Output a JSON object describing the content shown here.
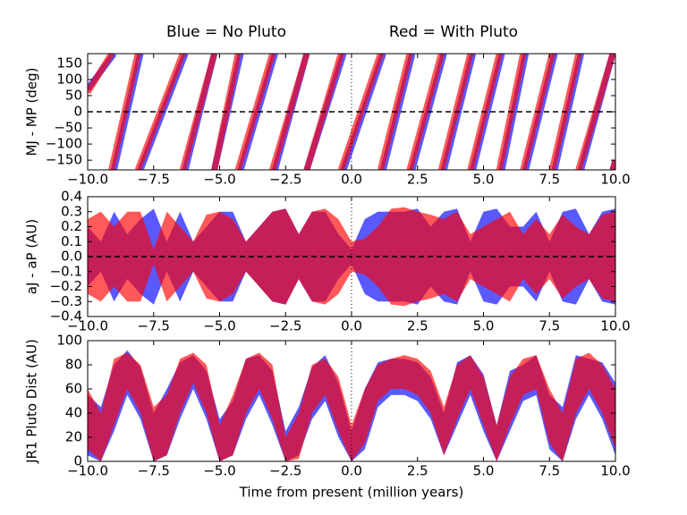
{
  "chart_data": [
    {
      "type": "line",
      "ylabel": "MJ - MP (deg)",
      "xlim": [
        -10,
        10
      ],
      "ylim": [
        -180,
        180
      ],
      "xticks": [
        {
          "value": -10,
          "label": "−10.0"
        },
        {
          "value": -7.5,
          "label": "−7.5"
        },
        {
          "value": -5,
          "label": "−5.0"
        },
        {
          "value": -2.5,
          "label": "−2.5"
        },
        {
          "value": 0,
          "label": "0.0"
        },
        2.5,
        {
          "value": 5,
          "label": "5.0"
        },
        7.5,
        {
          "value": 10,
          "label": "10.0"
        }
      ],
      "yticks": [
        {
          "value": -150,
          "label": "−150"
        },
        {
          "value": -100,
          "label": "−100"
        },
        {
          "value": -50,
          "label": "−50"
        },
        0,
        50,
        100,
        150
      ],
      "hline": 0,
      "vline": 0,
      "series": [
        {
          "name": "Blue = No Pluto",
          "color": "#0000ff",
          "alpha": 0.65,
          "x": [
            -10,
            -9,
            -9,
            -9,
            -8,
            -8,
            -8,
            -6.3,
            -6.3,
            -6.3,
            -5.2,
            -5.2,
            -5.2,
            -4.2,
            -4.2,
            -4.2,
            -2.9,
            -2.9,
            -2.9,
            -1.7,
            -1.7,
            -1.7,
            -0.3,
            -0.3,
            -0.3,
            1.2,
            1.2,
            1.2,
            2.3,
            2.3,
            2.3,
            3.5,
            3.5,
            3.5,
            4.6,
            4.6,
            4.6,
            5.7,
            5.7,
            5.7,
            6.6,
            6.6,
            6.6,
            7.7,
            7.7,
            7.7,
            8.7,
            8.7,
            8.7,
            9.9,
            9.9,
            9.9,
            10
          ],
          "values": [
            70,
            180,
            null,
            -180,
            180,
            null,
            -180,
            180,
            null,
            -180,
            180,
            null,
            -180,
            180,
            null,
            -180,
            180,
            null,
            -180,
            180,
            null,
            -180,
            180,
            null,
            -180,
            180,
            null,
            -180,
            180,
            null,
            -180,
            180,
            null,
            -180,
            180,
            null,
            -180,
            180,
            null,
            -180,
            180,
            null,
            -180,
            180,
            null,
            -180,
            180,
            null,
            -180,
            180,
            null,
            -180,
            -150
          ]
        },
        {
          "name": "Red = With Pluto",
          "color": "#ff0000",
          "alpha": 0.65,
          "x": [
            -10,
            -9.1,
            -9.1,
            -9.1,
            -8.1,
            -8.1,
            -8.1,
            -6.4,
            -6.4,
            -6.4,
            -5.2,
            -5.2,
            -5.2,
            -4.3,
            -4.3,
            -4.3,
            -3,
            -3,
            -3,
            -1.7,
            -1.7,
            -1.7,
            -0.4,
            -0.4,
            -0.4,
            1.1,
            1.1,
            1.1,
            2.2,
            2.2,
            2.2,
            3.4,
            3.4,
            3.4,
            4.5,
            4.5,
            4.5,
            5.6,
            5.6,
            5.6,
            6.5,
            6.5,
            6.5,
            7.6,
            7.6,
            7.6,
            8.6,
            8.6,
            8.6,
            9.9,
            9.9,
            9.9,
            10
          ],
          "values": [
            60,
            180,
            null,
            -180,
            180,
            null,
            -180,
            180,
            null,
            -180,
            180,
            null,
            -180,
            180,
            null,
            -180,
            180,
            null,
            -180,
            180,
            null,
            -180,
            180,
            null,
            -180,
            180,
            null,
            -180,
            180,
            null,
            -180,
            180,
            null,
            -180,
            180,
            null,
            -180,
            180,
            null,
            -180,
            180,
            null,
            -180,
            180,
            null,
            -180,
            180,
            null,
            -180,
            180,
            null,
            -180,
            -150
          ]
        }
      ]
    },
    {
      "type": "band",
      "ylabel": "aJ - aP (AU)",
      "xlim": [
        -10,
        10
      ],
      "ylim": [
        -0.4,
        0.4
      ],
      "xticks": [
        {
          "value": -10,
          "label": "−10.0"
        },
        {
          "value": -7.5,
          "label": "−7.5"
        },
        {
          "value": -5,
          "label": "−5.0"
        },
        {
          "value": -2.5,
          "label": "−2.5"
        },
        {
          "value": 0,
          "label": "0.0"
        },
        2.5,
        {
          "value": 5,
          "label": "5.0"
        },
        7.5,
        {
          "value": 10,
          "label": "10.0"
        }
      ],
      "yticks": [
        {
          "value": -0.4,
          "label": "−0.4"
        },
        {
          "value": -0.3,
          "label": "−0.3"
        },
        {
          "value": -0.2,
          "label": "−0.2"
        },
        {
          "value": -0.1,
          "label": "−0.1"
        },
        {
          "value": 0,
          "label": "0.0"
        },
        0.1,
        0.2,
        0.3,
        0.4
      ],
      "hline": 0,
      "vline": 0,
      "x": [
        -10,
        -9.5,
        -9,
        -8.5,
        -8,
        -7.5,
        -7,
        -6.5,
        -6,
        -5.5,
        -5,
        -4.5,
        -4,
        -3.5,
        -3,
        -2.5,
        -2,
        -1.5,
        -1,
        -0.5,
        0,
        0.5,
        1,
        1.5,
        2,
        2.5,
        3,
        3.5,
        4,
        4.5,
        5,
        5.5,
        6,
        6.5,
        7,
        7.5,
        8,
        8.5,
        9,
        9.5,
        10
      ],
      "series": [
        {
          "color": "#0000ff",
          "alpha": 0.65,
          "upper": [
            0.2,
            0.1,
            0.3,
            0.15,
            0.25,
            0.32,
            0.1,
            0.3,
            0.1,
            0.2,
            0.3,
            0.3,
            0.1,
            0.2,
            0.3,
            0.32,
            0.15,
            0.3,
            0.3,
            0.15,
            0.05,
            0.25,
            0.3,
            0.3,
            0.3,
            0.32,
            0.2,
            0.3,
            0.32,
            0.1,
            0.3,
            0.32,
            0.2,
            0.2,
            0.3,
            0.1,
            0.3,
            0.32,
            0.15,
            0.3,
            0.32
          ],
          "lower": [
            -0.2,
            -0.1,
            -0.3,
            -0.15,
            -0.25,
            -0.32,
            -0.1,
            -0.3,
            -0.1,
            -0.2,
            -0.3,
            -0.3,
            -0.1,
            -0.2,
            -0.3,
            -0.32,
            -0.15,
            -0.3,
            -0.3,
            -0.15,
            -0.05,
            -0.25,
            -0.3,
            -0.3,
            -0.3,
            -0.32,
            -0.2,
            -0.3,
            -0.32,
            -0.1,
            -0.3,
            -0.32,
            -0.2,
            -0.2,
            -0.3,
            -0.1,
            -0.3,
            -0.32,
            -0.15,
            -0.3,
            -0.32
          ]
        },
        {
          "color": "#ff0000",
          "alpha": 0.65,
          "upper": [
            0.25,
            0.3,
            0.2,
            0.3,
            0.3,
            0.05,
            0.3,
            0.2,
            0.1,
            0.28,
            0.3,
            0.25,
            0.1,
            0.2,
            0.3,
            0.32,
            0.15,
            0.3,
            0.32,
            0.25,
            0.1,
            0.12,
            0.2,
            0.32,
            0.33,
            0.3,
            0.28,
            0.25,
            0.3,
            0.15,
            0.2,
            0.25,
            0.3,
            0.15,
            0.25,
            0.15,
            0.28,
            0.2,
            0.15,
            0.28,
            0.3
          ],
          "lower": [
            -0.25,
            -0.3,
            -0.2,
            -0.3,
            -0.3,
            -0.05,
            -0.3,
            -0.2,
            -0.1,
            -0.28,
            -0.3,
            -0.25,
            -0.1,
            -0.2,
            -0.3,
            -0.32,
            -0.15,
            -0.3,
            -0.32,
            -0.25,
            -0.1,
            -0.12,
            -0.2,
            -0.32,
            -0.33,
            -0.3,
            -0.28,
            -0.25,
            -0.3,
            -0.15,
            -0.2,
            -0.25,
            -0.3,
            -0.15,
            -0.25,
            -0.15,
            -0.28,
            -0.2,
            -0.15,
            -0.28,
            -0.3
          ]
        }
      ]
    },
    {
      "type": "band",
      "ylabel": "JR1 Pluto Dist (AU)",
      "xlabel": "Time from present (million years)",
      "xlim": [
        -10,
        10
      ],
      "ylim": [
        0,
        100
      ],
      "xticks": [
        {
          "value": -10,
          "label": "−10.0"
        },
        {
          "value": -7.5,
          "label": "−7.5"
        },
        {
          "value": -5,
          "label": "−5.0"
        },
        {
          "value": -2.5,
          "label": "−2.5"
        },
        {
          "value": 0,
          "label": "0.0"
        },
        2.5,
        {
          "value": 5,
          "label": "5.0"
        },
        7.5,
        {
          "value": 10,
          "label": "10.0"
        }
      ],
      "yticks": [
        0,
        20,
        40,
        60,
        80,
        100
      ],
      "vline": 0,
      "x": [
        -10,
        -9.5,
        -9,
        -8.5,
        -8,
        -7.5,
        -7,
        -6.5,
        -6,
        -5.5,
        -5,
        -4.5,
        -4,
        -3.5,
        -3,
        -2.5,
        -2,
        -1.5,
        -1,
        -0.5,
        0,
        0.5,
        1,
        1.5,
        2,
        2.5,
        3,
        3.5,
        4,
        4.5,
        5,
        5.5,
        6,
        6.5,
        7,
        7.5,
        8,
        8.5,
        9,
        9.5,
        10
      ],
      "series": [
        {
          "color": "#0000ff",
          "alpha": 0.65,
          "upper": [
            55,
            45,
            80,
            92,
            78,
            40,
            60,
            82,
            88,
            75,
            35,
            50,
            85,
            88,
            75,
            25,
            45,
            78,
            88,
            65,
            25,
            60,
            82,
            85,
            85,
            82,
            70,
            40,
            82,
            88,
            72,
            30,
            75,
            80,
            88,
            55,
            45,
            88,
            85,
            82,
            65
          ],
          "lower": [
            5,
            0,
            25,
            55,
            35,
            0,
            5,
            35,
            60,
            35,
            0,
            5,
            35,
            55,
            30,
            0,
            5,
            35,
            50,
            20,
            0,
            10,
            45,
            55,
            55,
            50,
            35,
            5,
            30,
            55,
            25,
            0,
            25,
            50,
            55,
            10,
            0,
            35,
            55,
            35,
            5
          ]
        },
        {
          "color": "#ff0000",
          "alpha": 0.65,
          "upper": [
            60,
            40,
            85,
            90,
            80,
            45,
            55,
            85,
            90,
            80,
            30,
            55,
            85,
            90,
            80,
            20,
            40,
            80,
            85,
            70,
            30,
            60,
            80,
            85,
            88,
            85,
            75,
            45,
            80,
            88,
            70,
            30,
            70,
            85,
            88,
            60,
            40,
            85,
            90,
            80,
            60
          ],
          "lower": [
            10,
            0,
            30,
            60,
            40,
            0,
            5,
            40,
            65,
            40,
            0,
            5,
            40,
            60,
            35,
            0,
            2,
            40,
            55,
            25,
            0,
            15,
            50,
            60,
            60,
            55,
            40,
            5,
            35,
            60,
            30,
            0,
            30,
            55,
            60,
            15,
            0,
            40,
            60,
            40,
            10
          ]
        }
      ]
    }
  ]
}
